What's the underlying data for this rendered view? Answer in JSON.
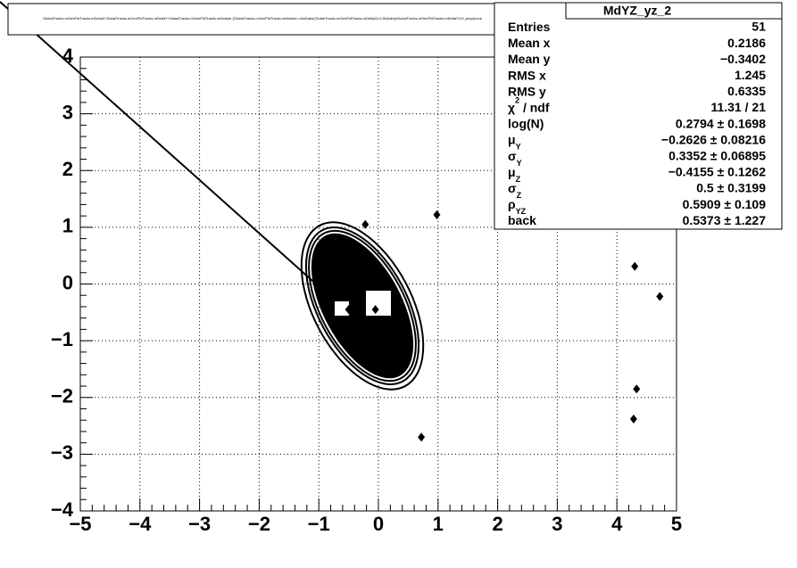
{
  "chart_data": {
    "type": "scatter",
    "title": "GlobalTracks.mGenPidTracks.mDeltaZ:GlobalTracks.mGenPidTracks.mDeltaY:GlobalTracks.mGenPidTracks.mModule {GlobalTracks.mGenPidTracks.mModule==8&&abs(GlobalTracks.mGenPidTracks.mDeltaZ)<0.5&&abs(GlobalTracks.mGenPidTracks.mDeltaY)<5,,prop}none",
    "x": [
      -0.22,
      0.98,
      4.3,
      4.72,
      4.33,
      4.28,
      0.72,
      -0.5,
      -0.05
    ],
    "series": [
      {
        "name": "MdYZ_yz_2",
        "color": "#000000",
        "values": [
          1.05,
          1.22,
          0.31,
          -0.22,
          -1.85,
          -2.38,
          -2.7,
          -0.45,
          -0.45
        ]
      }
    ],
    "xlim": [
      -5,
      5
    ],
    "ylim": [
      -4,
      4
    ],
    "xticks": [
      {
        "value": -5,
        "label": "−5"
      },
      {
        "value": -4,
        "label": "−4"
      },
      {
        "value": -3,
        "label": "−3"
      },
      {
        "value": -2,
        "label": "−2"
      },
      {
        "value": -1,
        "label": "−1"
      },
      0,
      1,
      2,
      3,
      4,
      5
    ],
    "yticks": [
      {
        "value": -4,
        "label": "−4"
      },
      {
        "value": -3,
        "label": "−3"
      },
      {
        "value": -2,
        "label": "−2"
      },
      {
        "value": -1,
        "label": "−1"
      },
      0,
      1,
      2,
      3,
      4
    ],
    "grid": true,
    "stats": {
      "title": "MdYZ_yz_2",
      "rows": [
        {
          "label": "Entries",
          "value": "51"
        },
        {
          "label": "Mean x",
          "value": "0.2186"
        },
        {
          "label": "Mean y",
          "value": "−0.3402"
        },
        {
          "label": "RMS x",
          "value": "1.245"
        },
        {
          "label": "RMS y",
          "value": "0.6335"
        },
        {
          "label": "χ",
          "sup": "2",
          "rest": " / ndf",
          "value": "11.31 / 21"
        },
        {
          "label": "log(N)",
          "value": "0.2794 ±  0.1698"
        },
        {
          "label": "μ",
          "sub": "Y",
          "value": "−0.2626 ±  0.08216"
        },
        {
          "label": "σ",
          "sub": "Y",
          "value": "0.3352 ±  0.06895"
        },
        {
          "label": "μ",
          "sub": "Z",
          "value": "−0.4155 ±  0.1262"
        },
        {
          "label": "σ",
          "sub": "Z",
          "value": "0.5 ±  0.3199"
        },
        {
          "label": "ρ",
          "sub": "YZ",
          "value": "0.5909 ±  0.109"
        },
        {
          "label": "back",
          "value": "0.5373 ±  1.227"
        }
      ]
    }
  }
}
